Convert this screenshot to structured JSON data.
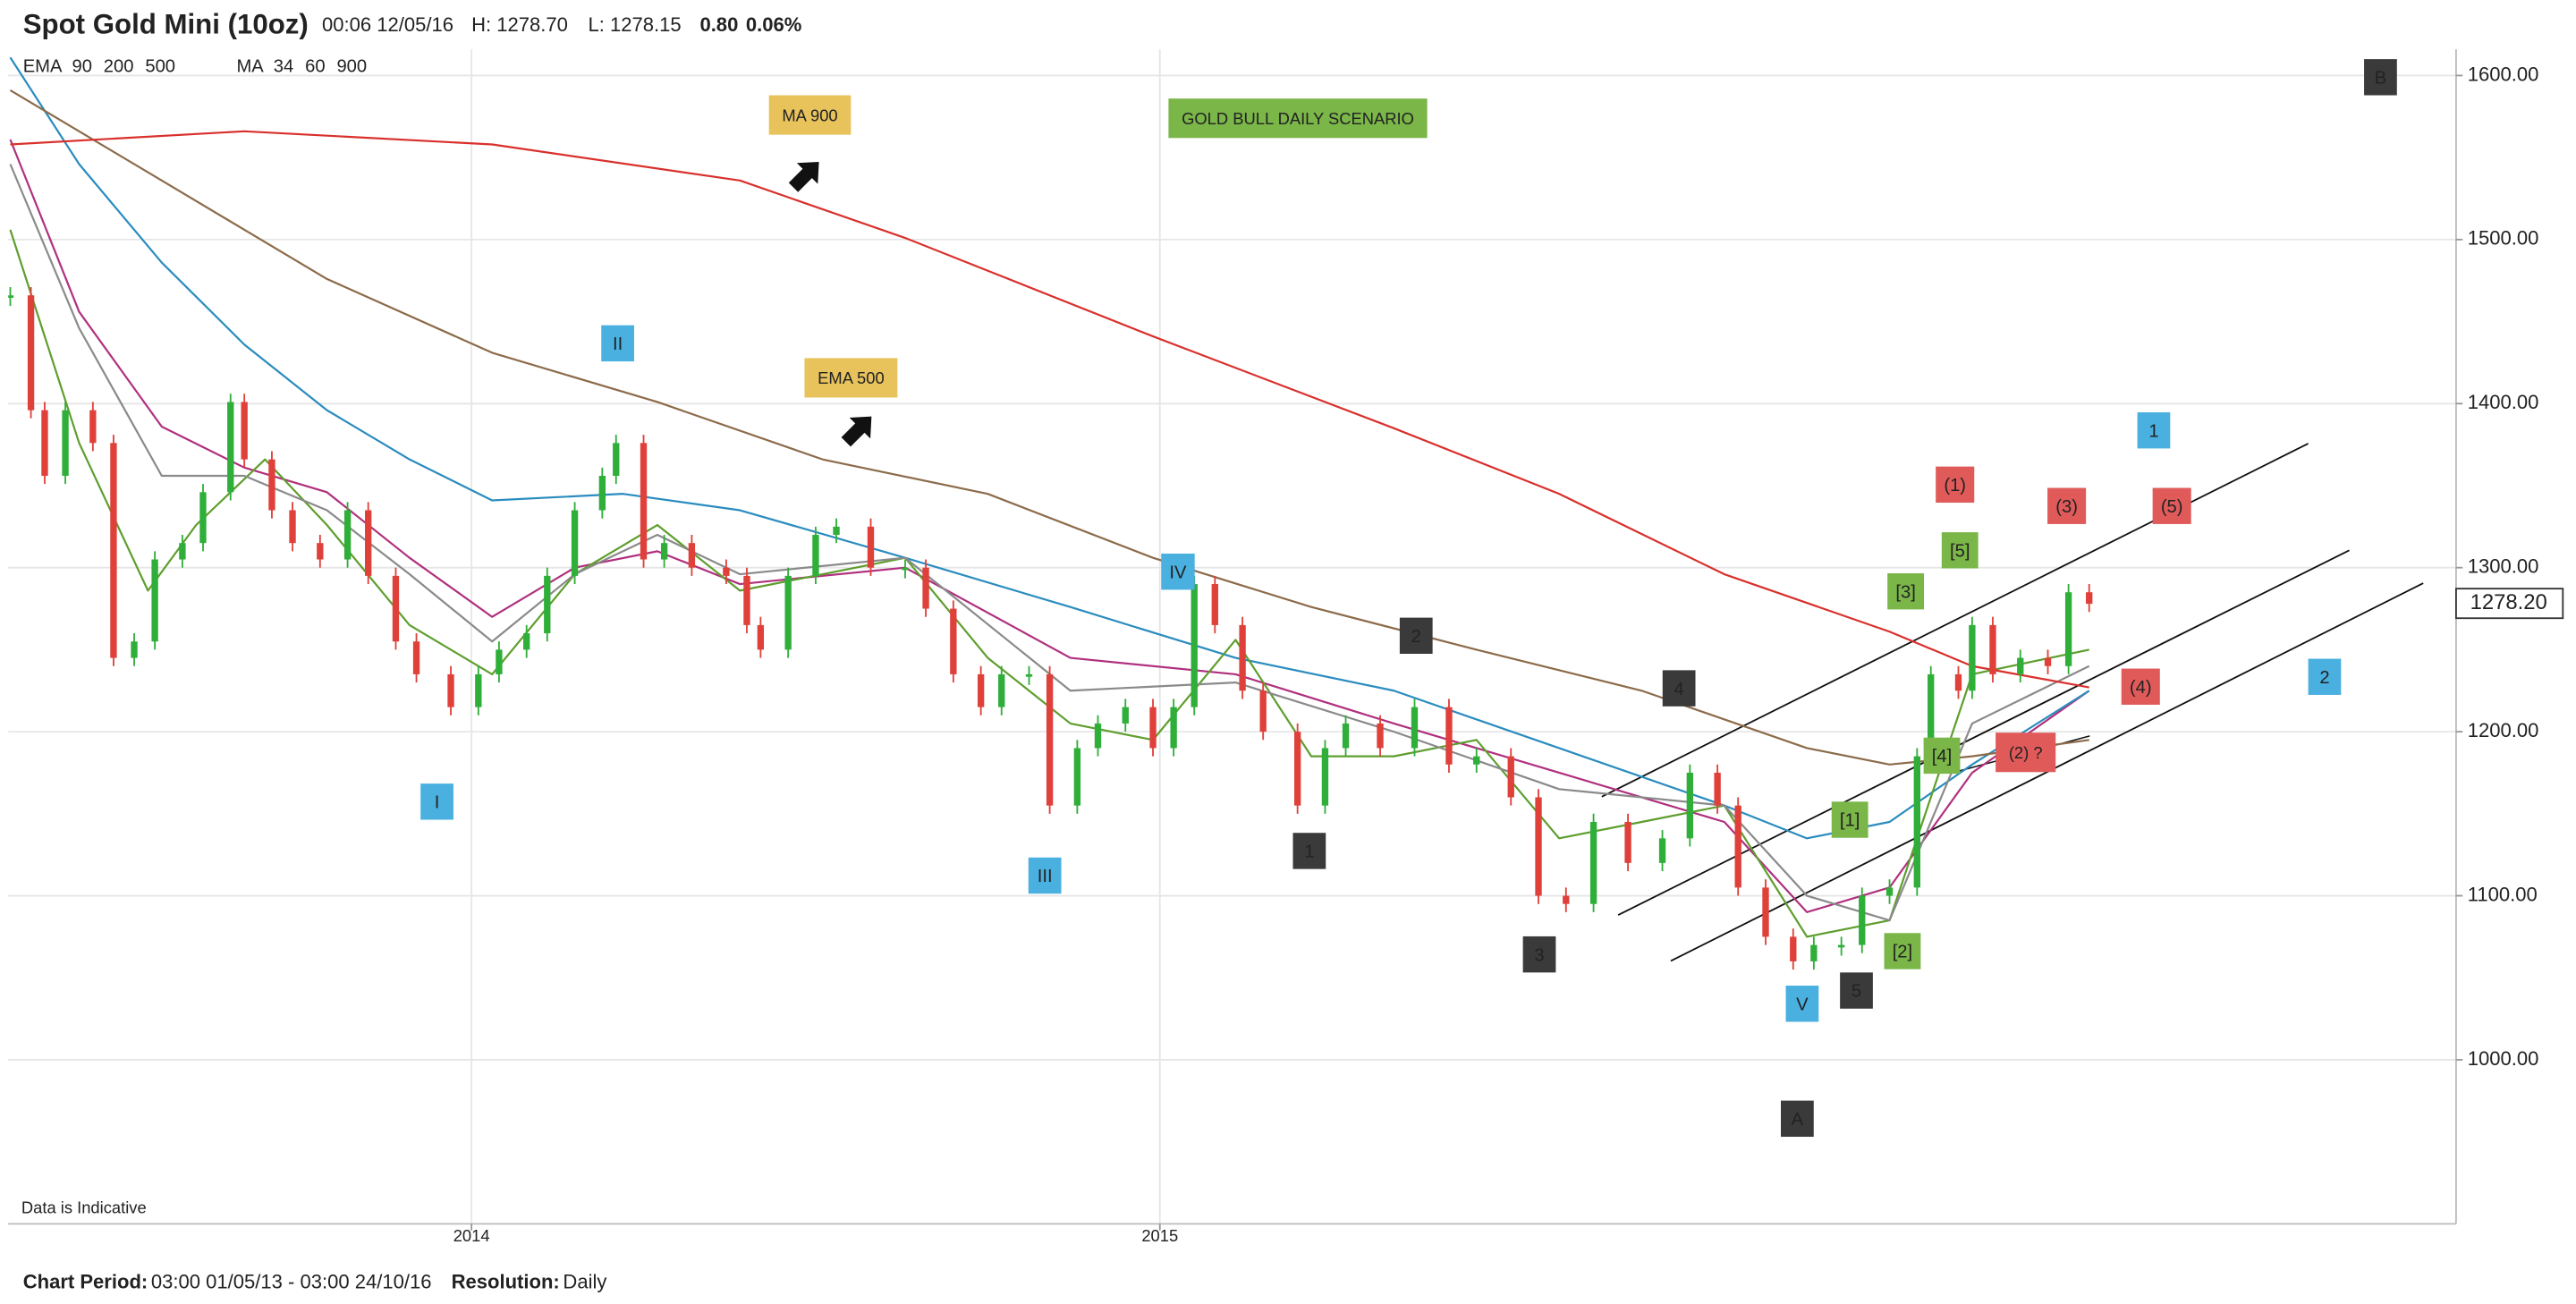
{
  "chart_data": {
    "type": "candlestick",
    "title": "Spot Gold Mini (10oz)",
    "timestamp": "00:06 12/05/16",
    "high": "H: 1278.70",
    "low": "L: 1278.15",
    "change": "0.80",
    "change_pct": "0.06%",
    "change_color": "#22aa22",
    "up_color": "#2fae3a",
    "down_color": "#e0403a",
    "note": "Data is Indicative",
    "footer": [
      {
        "label": "Chart Period:",
        "text": "03:00 01/05/13 - 03:00 24/10/16"
      },
      {
        "label": "Resolution:",
        "text": "Daily"
      }
    ],
    "last_price": {
      "value": 1278.2,
      "label": "1278.20"
    },
    "xlim": [
      2013.327,
      2016.883
    ],
    "xticks": [
      2014,
      2015
    ],
    "ylim": [
      900,
      1616
    ],
    "yticks": [
      {
        "value": 1000,
        "label": "1000.00"
      },
      {
        "value": 1100,
        "label": "1100.00"
      },
      {
        "value": 1200,
        "label": "1200.00"
      },
      {
        "value": 1300,
        "label": "1300.00"
      },
      {
        "value": 1400,
        "label": "1400.00"
      },
      {
        "value": 1500,
        "label": "1500.00"
      },
      {
        "value": 1600,
        "label": "1600.00"
      }
    ],
    "grid": true,
    "x": [
      2013.33,
      2013.36,
      2013.38,
      2013.41,
      2013.45,
      2013.48,
      2013.51,
      2013.54,
      2013.58,
      2013.61,
      2013.65,
      2013.67,
      2013.71,
      2013.74,
      2013.78,
      2013.82,
      2013.85,
      2013.89,
      2013.92,
      2013.97,
      2014.01,
      2014.04,
      2014.08,
      2014.11,
      2014.15,
      2014.19,
      2014.21,
      2014.25,
      2014.28,
      2014.32,
      2014.37,
      2014.4,
      2014.42,
      2014.46,
      2014.5,
      2014.53,
      2014.58,
      2014.63,
      2014.66,
      2014.7,
      2014.74,
      2014.77,
      2014.81,
      2014.84,
      2014.88,
      2014.91,
      2014.95,
      2014.99,
      2015.02,
      2015.05,
      2015.08,
      2015.12,
      2015.15,
      2015.2,
      2015.24,
      2015.27,
      2015.32,
      2015.37,
      2015.42,
      2015.46,
      2015.51,
      2015.55,
      2015.59,
      2015.63,
      2015.68,
      2015.73,
      2015.77,
      2015.81,
      2015.84,
      2015.88,
      2015.92,
      2015.95,
      2015.99,
      2016.02,
      2016.06,
      2016.1,
      2016.12,
      2016.16,
      2016.18,
      2016.21,
      2016.25,
      2016.29,
      2016.32,
      2016.35
    ],
    "values": [
      1466,
      1396,
      1356,
      1396,
      1376,
      1245,
      1255,
      1305,
      1315,
      1346,
      1401,
      1366,
      1335,
      1315,
      1305,
      1335,
      1295,
      1255,
      1235,
      1215,
      1235,
      1250,
      1260,
      1295,
      1335,
      1356,
      1376,
      1305,
      1315,
      1300,
      1295,
      1265,
      1250,
      1295,
      1320,
      1325,
      1300,
      1300,
      1275,
      1235,
      1215,
      1235,
      1235,
      1155,
      1190,
      1205,
      1215,
      1190,
      1215,
      1290,
      1265,
      1225,
      1200,
      1155,
      1190,
      1205,
      1190,
      1215,
      1180,
      1185,
      1160,
      1100,
      1095,
      1145,
      1120,
      1135,
      1175,
      1155,
      1105,
      1075,
      1060,
      1070,
      1070,
      1100,
      1105,
      1185,
      1235,
      1225,
      1265,
      1235,
      1245,
      1240,
      1285,
      1278
    ],
    "studies": [
      {
        "label": "EMA",
        "series": [
          {
            "name": "90",
            "color": "#b0307e",
            "x": [
              2013.33,
              2013.43,
              2013.55,
              2013.67,
              2013.79,
              2013.91,
              2014.03,
              2014.15,
              2014.27,
              2014.39,
              2014.63,
              2014.87,
              2015.11,
              2015.34,
              2015.58,
              2015.82,
              2015.94,
              2016.06,
              2016.18,
              2016.35
            ],
            "values": [
              1561,
              1456,
              1386,
              1361,
              1346,
              1306,
              1270,
              1300,
              1310,
              1290,
              1300,
              1245,
              1235,
              1205,
              1175,
              1145,
              1090,
              1105,
              1175,
              1225
            ]
          },
          {
            "name": "200",
            "color": "#2a8cbf",
            "x": [
              2013.33,
              2013.43,
              2013.55,
              2013.67,
              2013.79,
              2013.91,
              2014.03,
              2014.22,
              2014.39,
              2014.63,
              2014.87,
              2015.11,
              2015.34,
              2015.58,
              2015.82,
              2015.94,
              2016.06,
              2016.18,
              2016.35
            ],
            "values": [
              1611,
              1546,
              1486,
              1436,
              1396,
              1366,
              1341,
              1345,
              1335,
              1306,
              1276,
              1245,
              1225,
              1190,
              1155,
              1135,
              1145,
              1180,
              1225
            ]
          },
          {
            "name": "500",
            "color": "#8c6b4a",
            "x": [
              2013.33,
              2013.55,
              2013.79,
              2014.03,
              2014.27,
              2014.51,
              2014.75,
              2014.99,
              2015.22,
              2015.46,
              2015.7,
              2015.94,
              2016.06,
              2016.18,
              2016.35
            ],
            "values": [
              1591,
              1536,
              1476,
              1431,
              1401,
              1366,
              1345,
              1306,
              1276,
              1250,
              1225,
              1190,
              1180,
              1185,
              1195
            ]
          }
        ]
      },
      {
        "label": "MA",
        "series": [
          {
            "name": "34",
            "color": "#5e9e2e",
            "x": [
              2013.33,
              2013.43,
              2013.53,
              2013.6,
              2013.7,
              2013.79,
              2013.91,
              2014.03,
              2014.15,
              2014.27,
              2014.39,
              2014.51,
              2014.63,
              2014.75,
              2014.87,
              2014.99,
              2015.11,
              2015.22,
              2015.34,
              2015.46,
              2015.58,
              2015.7,
              2015.82,
              2015.94,
              2016.06,
              2016.18,
              2016.35
            ],
            "values": [
              1506,
              1376,
              1286,
              1326,
              1366,
              1326,
              1265,
              1235,
              1296,
              1326,
              1286,
              1296,
              1306,
              1245,
              1205,
              1195,
              1256,
              1185,
              1185,
              1195,
              1135,
              1145,
              1155,
              1075,
              1085,
              1235,
              1250
            ]
          },
          {
            "name": "60",
            "color": "#8a8a8a",
            "x": [
              2013.33,
              2013.43,
              2013.55,
              2013.67,
              2013.79,
              2013.91,
              2014.03,
              2014.15,
              2014.27,
              2014.39,
              2014.63,
              2014.87,
              2015.11,
              2015.34,
              2015.58,
              2015.82,
              2015.94,
              2016.06,
              2016.18,
              2016.35
            ],
            "values": [
              1546,
              1446,
              1356,
              1356,
              1335,
              1296,
              1255,
              1296,
              1320,
              1296,
              1306,
              1225,
              1230,
              1200,
              1165,
              1155,
              1100,
              1085,
              1205,
              1240
            ]
          },
          {
            "name": "900",
            "color": "#d9302c",
            "x": [
              2013.33,
              2013.67,
              2014.03,
              2014.39,
              2014.63,
              2014.99,
              2015.34,
              2015.58,
              2015.82,
              2016.06,
              2016.18,
              2016.35
            ],
            "values": [
              1558,
              1566,
              1558,
              1536,
              1501,
              1441,
              1385,
              1345,
              1296,
              1261,
              1240,
              1227
            ]
          }
        ]
      }
    ],
    "annotations": [
      {
        "text": "MA 900",
        "color": "#e8c35c"
      },
      {
        "text": "GOLD BULL DAILY SCENARIO",
        "color": "#7ab648"
      },
      {
        "text": "EMA 500",
        "color": "#e8c35c"
      },
      {
        "text": "B",
        "color": "#3a3a3a"
      },
      {
        "text": "II",
        "color": "#4ab0e0"
      },
      {
        "text": "I",
        "color": "#4ab0e0"
      },
      {
        "text": "III",
        "color": "#4ab0e0"
      },
      {
        "text": "IV",
        "color": "#4ab0e0"
      },
      {
        "text": "V",
        "color": "#4ab0e0"
      },
      {
        "text": "1",
        "color": "#4ab0e0"
      },
      {
        "text": "2",
        "color": "#4ab0e0"
      },
      {
        "text": "2",
        "color": "#3a3a3a"
      },
      {
        "text": "1",
        "color": "#3a3a3a"
      },
      {
        "text": "4",
        "color": "#3a3a3a"
      },
      {
        "text": "3",
        "color": "#3a3a3a"
      },
      {
        "text": "5",
        "color": "#3a3a3a"
      },
      {
        "text": "A",
        "color": "#3a3a3a"
      },
      {
        "text": "[1]",
        "color": "#7ab648"
      },
      {
        "text": "[2]",
        "color": "#7ab648"
      },
      {
        "text": "[3]",
        "color": "#7ab648"
      },
      {
        "text": "[5]",
        "color": "#7ab648"
      },
      {
        "text": "[4]",
        "color": "#7ab648"
      },
      {
        "text": "(1)",
        "color": "#e05a5a"
      },
      {
        "text": "(3)",
        "color": "#e05a5a"
      },
      {
        "text": "(5)",
        "color": "#e05a5a"
      },
      {
        "text": "(4)",
        "color": "#e05a5a"
      },
      {
        "text": "(2) ?",
        "color": "#e05a5a"
      }
    ]
  }
}
